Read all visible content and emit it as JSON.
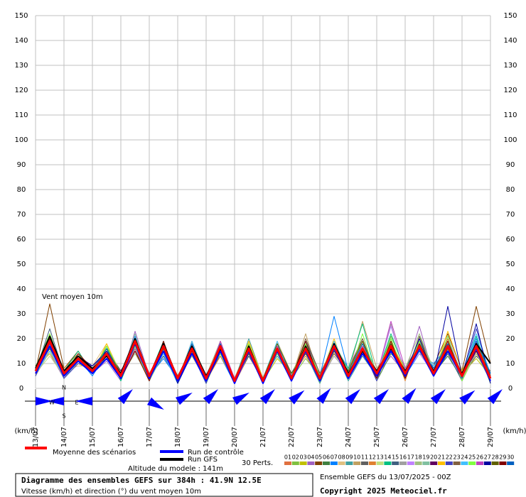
{
  "chart_data": {
    "type": "line",
    "title": "Diagramme des ensembles GEFS sur 384h : 41.9N 12.5E",
    "subtitle": "Vitesse (km/h) et direction (°) du vent moyen 10m",
    "annotation": "Vent moyen 10m",
    "altitude": "Altitude du modele : 141m",
    "run": "Ensemble GEFS du 13/07/2025 - 00Z",
    "copyright": "Copyright 2025 Meteociel.fr",
    "y_label": "(km/h)",
    "perturbation_count": "30 Perts.",
    "compass": [
      "N",
      "W",
      "E",
      "S"
    ],
    "categories": [
      "13/07",
      null,
      "14/07",
      null,
      "15/07",
      null,
      "16/07",
      null,
      "17/07",
      null,
      "18/07",
      null,
      "19/07",
      null,
      "20/07",
      null,
      "21/07",
      null,
      "22/07",
      null,
      "23/07",
      null,
      "24/07",
      null,
      "25/07",
      null,
      "26/07",
      null,
      "27/07",
      null,
      "28/07",
      null,
      "29/07"
    ],
    "ylim": [
      0,
      150
    ],
    "yticks": [
      0,
      10,
      20,
      30,
      40,
      50,
      60,
      70,
      80,
      90,
      100,
      110,
      120,
      130,
      140,
      150
    ],
    "grid": true,
    "wind_direction": [
      270,
      90,
      90,
      225,
      300,
      240,
      225,
      240,
      225,
      230,
      220,
      225,
      225,
      220,
      225,
      230,
      225
    ],
    "wind_color": "#0000ff",
    "series": [
      {
        "name": "Moyenne des scénarios",
        "color": "#ff0000",
        "values": [
          7,
          19,
          6,
          12,
          7,
          14,
          5,
          19,
          5,
          17,
          4,
          16,
          4,
          17,
          3,
          16,
          3,
          16,
          4,
          16,
          4,
          17,
          5,
          16,
          6,
          17,
          6,
          17,
          6,
          17,
          5,
          17,
          4
        ]
      },
      {
        "name": "Run de contrôle",
        "color": "#0000ff",
        "values": [
          6,
          17,
          5,
          11,
          6,
          12,
          4,
          18,
          4,
          15,
          3,
          14,
          3,
          15,
          2,
          15,
          2,
          15,
          3,
          15,
          3,
          16,
          4,
          14,
          5,
          15,
          5,
          16,
          5,
          15,
          5,
          16,
          3
        ]
      },
      {
        "name": "Run GFS",
        "color": "#000000",
        "values": [
          8,
          21,
          7,
          13,
          8,
          13,
          6,
          20,
          5,
          18,
          4,
          17,
          5,
          16,
          3,
          17,
          3,
          16,
          4,
          17,
          4,
          18,
          6,
          15,
          7,
          16,
          7,
          16,
          7,
          15,
          6,
          18,
          10
        ]
      },
      {
        "name": "01",
        "color": "#e07040",
        "values": [
          6,
          16,
          5,
          11,
          8,
          12,
          6,
          17,
          4,
          14,
          3,
          15,
          4,
          18,
          2,
          13,
          3,
          14,
          5,
          15,
          3,
          19,
          6,
          13,
          5,
          18,
          7,
          15,
          6,
          20,
          4,
          14,
          6
        ]
      },
      {
        "name": "02",
        "color": "#80c040",
        "values": [
          8,
          19,
          7,
          13,
          9,
          15,
          5,
          20,
          6,
          16,
          4,
          13,
          5,
          16,
          3,
          15,
          2,
          17,
          4,
          12,
          5,
          14,
          7,
          18,
          4,
          21,
          8,
          17,
          7,
          16,
          5,
          18,
          3
        ]
      },
      {
        "name": "03",
        "color": "#c0c000",
        "values": [
          5,
          22,
          6,
          10,
          7,
          17,
          4,
          16,
          3,
          19,
          2,
          17,
          3,
          14,
          4,
          18,
          3,
          12,
          6,
          17,
          2,
          16,
          5,
          14,
          6,
          15,
          4,
          19,
          8,
          14,
          6,
          12,
          5
        ]
      },
      {
        "name": "04",
        "color": "#a060c0",
        "values": [
          9,
          14,
          4,
          12,
          6,
          11,
          3,
          23,
          5,
          13,
          5,
          16,
          2,
          17,
          3,
          14,
          4,
          15,
          3,
          16,
          4,
          18,
          8,
          20,
          5,
          13,
          6,
          25,
          5,
          18,
          3,
          15,
          4
        ]
      },
      {
        "name": "05",
        "color": "#804000",
        "values": [
          7,
          34,
          8,
          15,
          6,
          13,
          5,
          18,
          4,
          15,
          3,
          19,
          4,
          15,
          2,
          16,
          3,
          18,
          5,
          14,
          6,
          17,
          4,
          16,
          7,
          19,
          5,
          16,
          9,
          22,
          7,
          33,
          10
        ]
      },
      {
        "name": "06",
        "color": "#408040",
        "values": [
          6,
          18,
          5,
          14,
          8,
          16,
          7,
          15,
          3,
          17,
          2,
          14,
          3,
          19,
          3,
          13,
          4,
          16,
          4,
          19,
          3,
          15,
          6,
          17,
          3,
          14,
          8,
          18,
          6,
          13,
          4,
          17,
          2
        ]
      },
      {
        "name": "07",
        "color": "#0080ff",
        "values": [
          7,
          20,
          6,
          12,
          5,
          14,
          4,
          21,
          5,
          12,
          4,
          15,
          5,
          13,
          2,
          17,
          2,
          14,
          3,
          18,
          5,
          29,
          7,
          15,
          4,
          16,
          5,
          14,
          10,
          17,
          5,
          20,
          6
        ]
      },
      {
        "name": "08",
        "color": "#e0c080",
        "values": [
          8,
          15,
          7,
          9,
          9,
          18,
          6,
          17,
          4,
          16,
          3,
          13,
          3,
          18,
          4,
          15,
          3,
          19,
          6,
          15,
          4,
          17,
          5,
          19,
          6,
          18,
          6,
          16,
          7,
          19,
          3,
          14,
          4
        ]
      },
      {
        "name": "09",
        "color": "#40a0a0",
        "values": [
          5,
          17,
          4,
          11,
          7,
          12,
          5,
          19,
          3,
          18,
          4,
          17,
          4,
          16,
          3,
          20,
          4,
          13,
          5,
          14,
          2,
          16,
          3,
          13,
          5,
          20,
          4,
          21,
          8,
          15,
          6,
          16,
          5
        ]
      },
      {
        "name": "10",
        "color": "#c0a060",
        "values": [
          6,
          21,
          5,
          13,
          8,
          16,
          6,
          16,
          5,
          14,
          2,
          19,
          2,
          15,
          2,
          14,
          3,
          17,
          4,
          22,
          3,
          14,
          6,
          27,
          8,
          17,
          7,
          15,
          5,
          18,
          4,
          19,
          3
        ]
      },
      {
        "name": "11",
        "color": "#606060",
        "values": [
          9,
          16,
          6,
          12,
          6,
          13,
          4,
          18,
          4,
          17,
          3,
          14,
          5,
          17,
          4,
          16,
          2,
          15,
          3,
          16,
          5,
          18,
          4,
          16,
          4,
          15,
          5,
          17,
          6,
          16,
          5,
          13,
          7
        ]
      },
      {
        "name": "12",
        "color": "#e08030",
        "values": [
          7,
          19,
          8,
          14,
          7,
          15,
          5,
          15,
          3,
          15,
          3,
          16,
          3,
          13,
          3,
          18,
          4,
          16,
          5,
          13,
          4,
          15,
          5,
          14,
          6,
          19,
          3,
          20,
          7,
          20,
          4,
          18,
          5
        ]
      },
      {
        "name": "13",
        "color": "#c0e080",
        "values": [
          6,
          13,
          5,
          10,
          9,
          14,
          6,
          20,
          4,
          16,
          4,
          18,
          4,
          18,
          3,
          15,
          3,
          14,
          4,
          17,
          3,
          19,
          7,
          18,
          3,
          17,
          6,
          18,
          9,
          15,
          5,
          15,
          4
        ]
      },
      {
        "name": "14",
        "color": "#00c080",
        "values": [
          8,
          18,
          7,
          15,
          6,
          17,
          3,
          17,
          5,
          19,
          2,
          15,
          2,
          16,
          2,
          16,
          2,
          18,
          6,
          15,
          4,
          17,
          8,
          26,
          5,
          22,
          7,
          16,
          7,
          18,
          6,
          21,
          3
        ]
      },
      {
        "name": "15",
        "color": "#406080",
        "values": [
          7,
          24,
          6,
          11,
          8,
          12,
          5,
          18,
          4,
          13,
          3,
          17,
          3,
          14,
          4,
          13,
          4,
          15,
          3,
          19,
          6,
          16,
          4,
          15,
          6,
          16,
          4,
          19,
          5,
          14,
          3,
          16,
          6
        ]
      },
      {
        "name": "16",
        "color": "#a0a0a0",
        "values": [
          5,
          15,
          4,
          13,
          7,
          15,
          4,
          16,
          3,
          17,
          5,
          14,
          4,
          17,
          3,
          17,
          3,
          17,
          4,
          14,
          3,
          13,
          6,
          17,
          4,
          26,
          5,
          15,
          8,
          17,
          4,
          17,
          5
        ]
      },
      {
        "name": "17",
        "color": "#c080ff",
        "values": [
          6,
          17,
          5,
          12,
          9,
          14,
          6,
          19,
          6,
          15,
          3,
          16,
          3,
          15,
          2,
          14,
          2,
          16,
          5,
          16,
          5,
          18,
          5,
          16,
          5,
          25,
          6,
          14,
          6,
          21,
          5,
          19,
          4
        ]
      },
      {
        "name": "18",
        "color": "#a0c080",
        "values": [
          9,
          20,
          7,
          11,
          6,
          16,
          5,
          14,
          4,
          18,
          4,
          13,
          5,
          19,
          3,
          18,
          3,
          14,
          4,
          18,
          4,
          15,
          7,
          19,
          7,
          18,
          8,
          22,
          7,
          16,
          4,
          14,
          3
        ]
      },
      {
        "name": "19",
        "color": "#80c0a0",
        "values": [
          7,
          16,
          6,
          14,
          8,
          13,
          4,
          22,
          3,
          14,
          2,
          18,
          4,
          16,
          4,
          15,
          4,
          18,
          3,
          15,
          3,
          16,
          5,
          18,
          5,
          17,
          5,
          20,
          6,
          19,
          6,
          17,
          5
        ]
      },
      {
        "name": "20",
        "color": "#600060",
        "values": [
          6,
          19,
          5,
          12,
          7,
          15,
          7,
          17,
          5,
          16,
          3,
          15,
          3,
          14,
          3,
          16,
          3,
          15,
          5,
          17,
          5,
          17,
          6,
          15,
          4,
          16,
          6,
          16,
          7,
          17,
          5,
          16,
          4
        ]
      },
      {
        "name": "21",
        "color": "#ffc000",
        "values": [
          8,
          14,
          6,
          13,
          6,
          18,
          5,
          16,
          4,
          15,
          4,
          17,
          4,
          17,
          2,
          19,
          4,
          16,
          4,
          14,
          4,
          20,
          4,
          17,
          6,
          19,
          7,
          17,
          5,
          23,
          7,
          18,
          6
        ]
      },
      {
        "name": "22",
        "color": "#4040c0",
        "values": [
          5,
          18,
          4,
          10,
          9,
          14,
          6,
          18,
          3,
          17,
          3,
          14,
          2,
          18,
          4,
          14,
          2,
          17,
          6,
          16,
          3,
          18,
          5,
          16,
          3,
          18,
          5,
          18,
          8,
          15,
          4,
          24,
          5
        ]
      },
      {
        "name": "23",
        "color": "#806040",
        "values": [
          7,
          21,
          7,
          13,
          7,
          16,
          4,
          15,
          5,
          16,
          5,
          16,
          5,
          15,
          3,
          17,
          3,
          15,
          4,
          20,
          6,
          14,
          7,
          20,
          5,
          15,
          4,
          21,
          6,
          18,
          6,
          15,
          3
        ]
      },
      {
        "name": "24",
        "color": "#40c0ff",
        "values": [
          6,
          15,
          5,
          11,
          8,
          13,
          5,
          19,
          4,
          14,
          2,
          19,
          3,
          16,
          3,
          15,
          4,
          19,
          3,
          15,
          4,
          19,
          6,
          14,
          7,
          17,
          6,
          15,
          9,
          16,
          5,
          22,
          6
        ]
      },
      {
        "name": "25",
        "color": "#80ff40",
        "values": [
          8,
          22,
          6,
          14,
          6,
          17,
          6,
          17,
          3,
          18,
          4,
          15,
          4,
          14,
          2,
          18,
          3,
          14,
          5,
          18,
          5,
          16,
          4,
          22,
          4,
          20,
          5,
          19,
          6,
          21,
          3,
          16,
          4
        ]
      },
      {
        "name": "26",
        "color": "#c040c0",
        "values": [
          6,
          17,
          5,
          12,
          7,
          14,
          4,
          16,
          5,
          15,
          3,
          16,
          3,
          19,
          4,
          16,
          2,
          17,
          4,
          16,
          3,
          17,
          6,
          17,
          5,
          27,
          8,
          16,
          7,
          17,
          4,
          17,
          5
        ]
      },
      {
        "name": "27",
        "color": "#0000a0",
        "values": [
          7,
          19,
          6,
          13,
          9,
          15,
          5,
          20,
          4,
          17,
          2,
          14,
          4,
          17,
          3,
          17,
          3,
          16,
          3,
          17,
          4,
          18,
          5,
          15,
          6,
          16,
          6,
          20,
          5,
          33,
          5,
          26,
          2
        ]
      },
      {
        "name": "28",
        "color": "#606000",
        "values": [
          9,
          16,
          7,
          11,
          6,
          16,
          6,
          18,
          4,
          16,
          4,
          17,
          5,
          16,
          3,
          14,
          4,
          18,
          6,
          14,
          5,
          15,
          7,
          19,
          5,
          18,
          5,
          17,
          6,
          16,
          6,
          18,
          5
        ]
      },
      {
        "name": "29",
        "color": "#800000",
        "values": [
          6,
          20,
          5,
          14,
          8,
          13,
          4,
          15,
          3,
          19,
          3,
          15,
          3,
          15,
          2,
          17,
          3,
          15,
          4,
          19,
          3,
          17,
          5,
          16,
          4,
          19,
          4,
          18,
          7,
          19,
          5,
          15,
          4
        ]
      },
      {
        "name": "30",
        "color": "#0060c0",
        "values": [
          7,
          18,
          6,
          12,
          7,
          16,
          5,
          19,
          5,
          15,
          3,
          18,
          4,
          18,
          3,
          15,
          2,
          16,
          5,
          15,
          4,
          16,
          6,
          18,
          6,
          17,
          6,
          15,
          8,
          18,
          4,
          19,
          6
        ]
      }
    ]
  }
}
